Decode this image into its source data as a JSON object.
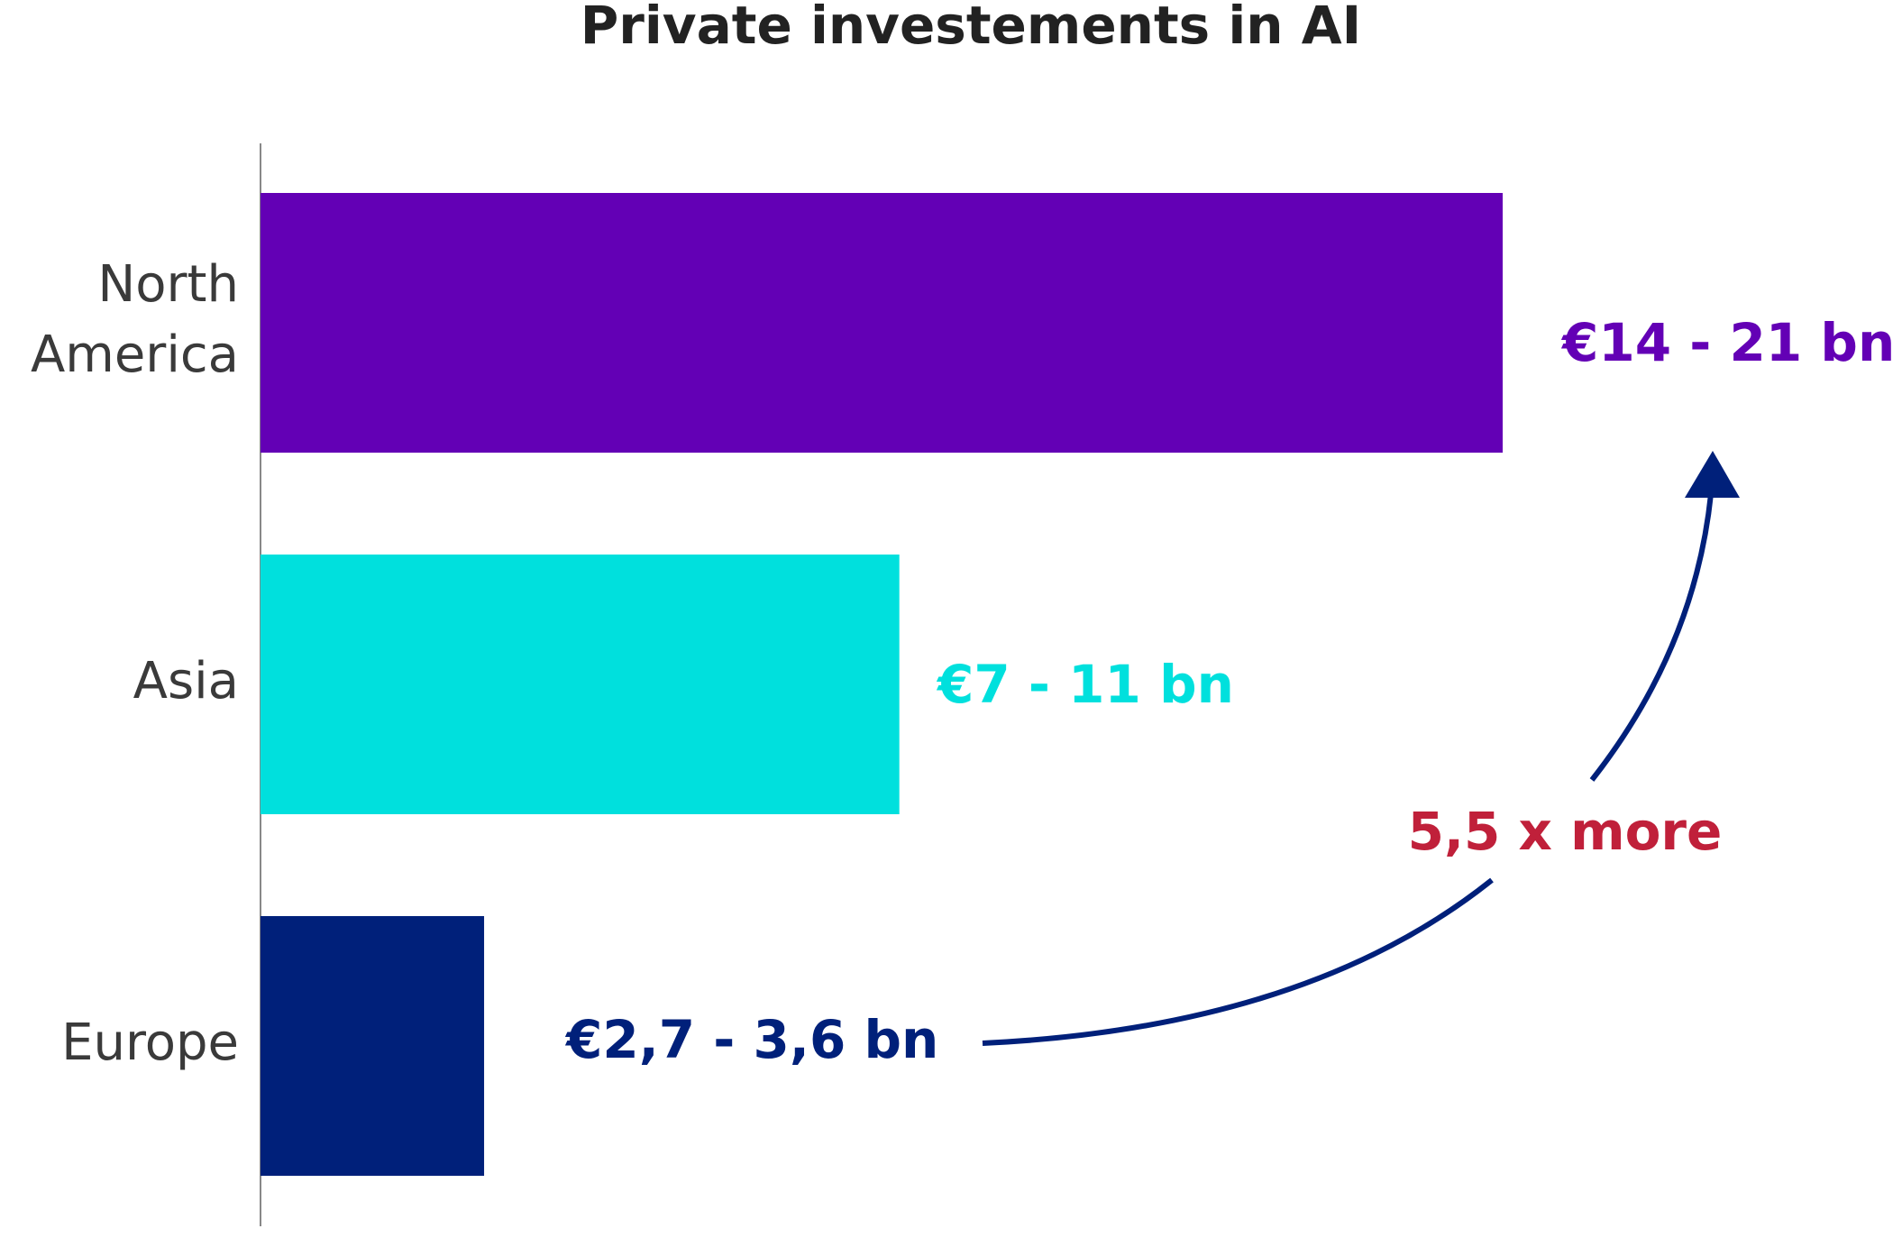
{
  "chart_data": {
    "type": "barh",
    "title": "Private investements in AI",
    "categories": [
      "North America",
      "Asia",
      "Europe"
    ],
    "values": [
      17.5,
      9,
      3.15
    ],
    "value_labels": [
      "€14 - 21 bn",
      "€7 - 11 bn",
      "€2,7 - 3,6 bn"
    ],
    "colors": [
      "#6300b5",
      "#00e0dd",
      "#00207a"
    ],
    "annotation": "5,5 x more",
    "annotation_color": "#c0203a"
  }
}
